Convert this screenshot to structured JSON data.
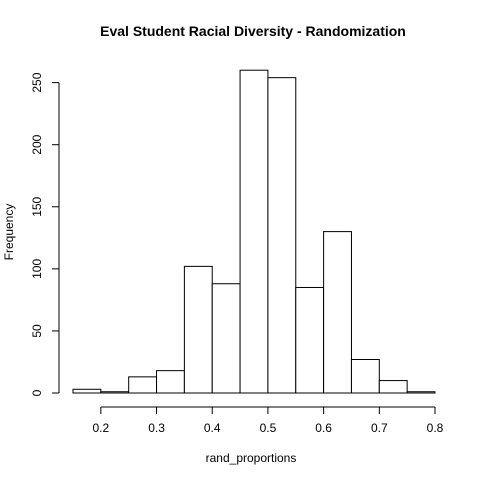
{
  "chart_data": {
    "type": "bar",
    "title": "Eval Student Racial Diversity - Randomization",
    "xlabel": "rand_proportions",
    "ylabel": "Frequency",
    "bin_edges": [
      0.15,
      0.2,
      0.25,
      0.3,
      0.35,
      0.4,
      0.45,
      0.5,
      0.55,
      0.6,
      0.65,
      0.7,
      0.75,
      0.8
    ],
    "values": [
      3,
      1,
      13,
      18,
      102,
      88,
      260,
      254,
      85,
      130,
      27,
      10,
      1
    ],
    "xlim": [
      0.15,
      0.8
    ],
    "ylim": [
      0,
      265
    ],
    "x_ticks": [
      0.2,
      0.3,
      0.4,
      0.5,
      0.6,
      0.7,
      0.8
    ],
    "x_tick_labels": [
      "0.2",
      "0.3",
      "0.4",
      "0.5",
      "0.6",
      "0.7",
      "0.8"
    ],
    "y_ticks": [
      0,
      50,
      100,
      150,
      200,
      250
    ],
    "y_tick_labels": [
      "0",
      "50",
      "100",
      "150",
      "200",
      "250"
    ],
    "grid": false,
    "colors": {
      "bar_fill": "#ffffff",
      "bar_stroke": "#000000"
    }
  }
}
